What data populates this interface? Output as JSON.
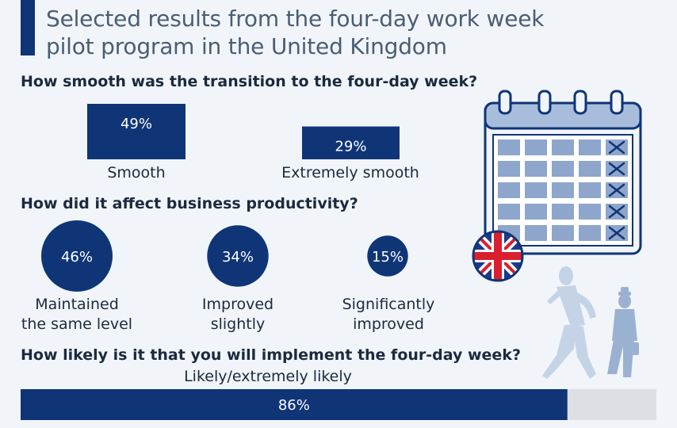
{
  "title": "Selected results from the four-day work week pilot program in the United Kingdom",
  "colors": {
    "primary": "#0f3577",
    "background": "#f1f5f9",
    "track": "#dcdfe4",
    "illustration": "#a8bddb"
  },
  "chart_data": [
    {
      "type": "bar",
      "title": "How smooth was the transition to the four-day week?",
      "categories": [
        "Smooth",
        "Extremely smooth"
      ],
      "values": [
        49,
        29
      ],
      "labels": [
        "49%",
        "29%"
      ]
    },
    {
      "type": "bubble",
      "title": "How did it affect business productivity?",
      "categories": [
        "Maintained the same level",
        "Improved slightly",
        "Significantly improved"
      ],
      "category_lines": [
        [
          "Maintained",
          "the same level"
        ],
        [
          "Improved",
          "slightly"
        ],
        [
          "Significantly",
          "improved"
        ]
      ],
      "values": [
        46,
        34,
        15
      ],
      "labels": [
        "46%",
        "34%",
        "15%"
      ]
    },
    {
      "type": "bar",
      "title": "How likely is it that you will implement the four-day week?",
      "categories": [
        "Likely/extremely likely"
      ],
      "values": [
        86
      ],
      "labels": [
        "86%"
      ],
      "max": 100
    }
  ],
  "illustration": {
    "icons": [
      "calendar-icon",
      "uk-flag-icon",
      "walking-person-icon",
      "businessman-icon"
    ]
  }
}
